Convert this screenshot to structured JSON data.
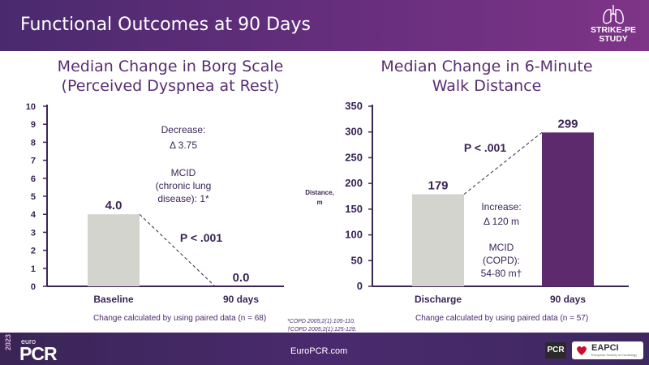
{
  "header": {
    "title": "Functional Outcomes at 90 Days",
    "logo_line1": "STRIKE-PE",
    "logo_line2": "STUDY"
  },
  "left_chart": {
    "title_line1": "Median Change in Borg Scale",
    "title_line2": "(Perceived Dyspnea at Rest)",
    "annotation_decrease": [
      "Decrease:",
      "Δ 3.75"
    ],
    "annotation_mcid": [
      "MCID",
      "(chronic lung",
      "disease): 1*"
    ],
    "p_value": "P < .001",
    "note": "Change calculated by using paired data (n = 68)"
  },
  "right_chart": {
    "title_line1": "Median Change in 6-Minute",
    "title_line2": "Walk Distance",
    "y_axis_label": [
      "Distance,",
      "m"
    ],
    "annotation_increase": [
      "Increase:",
      "Δ 120 m"
    ],
    "annotation_mcid": [
      "MCID",
      "(COPD):",
      "54-80 m†"
    ],
    "p_value": "P < .001",
    "note": "Change calculated by using paired data (n = 57)"
  },
  "references": [
    "*COPD 2005;2(1):105-110.",
    "†COPD 2005;2(1):125-129."
  ],
  "footer": {
    "url": "EuroPCR.com",
    "year": "2023",
    "brand_small": "euro",
    "brand_large": "PCR",
    "badge": "PCR",
    "partner": "EAPCI",
    "partner_sub": "European Society of Cardiology"
  },
  "colors": {
    "title_purple": "#5a2d72",
    "gray_bar": "#d4d4ce",
    "purple_bar": "#5d2a6e",
    "axis": "#3a2556"
  },
  "chart_data": [
    {
      "type": "bar",
      "title": "Median Change in Borg Scale (Perceived Dyspnea at Rest)",
      "categories": [
        "Baseline",
        "90 days"
      ],
      "values": [
        4.0,
        0.0
      ],
      "value_labels": [
        "4.0",
        "0.0"
      ],
      "ylim": [
        0,
        10
      ],
      "yticks": [
        0,
        1,
        2,
        3,
        4,
        5,
        6,
        7,
        8,
        9,
        10
      ],
      "xlabel": "",
      "ylabel": ""
    },
    {
      "type": "bar",
      "title": "Median Change in 6-Minute Walk Distance",
      "categories": [
        "Discharge",
        "90 days"
      ],
      "values": [
        179,
        299
      ],
      "value_labels": [
        "179",
        "299"
      ],
      "ylim": [
        0,
        350
      ],
      "yticks": [
        0,
        50,
        100,
        150,
        200,
        250,
        300,
        350
      ],
      "xlabel": "",
      "ylabel": "Distance, m"
    }
  ]
}
